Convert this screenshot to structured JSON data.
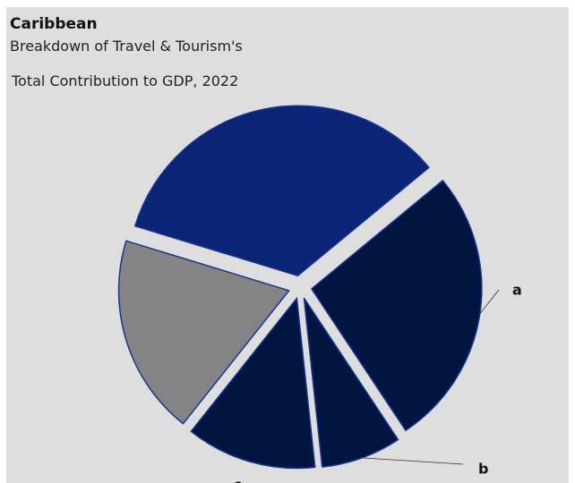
{
  "chart_data": {
    "type": "pie",
    "title": "Caribbean",
    "subtitle_lines": [
      "Breakdown of Travel & Tourism's",
      "Total Contribution to GDP, 2022"
    ],
    "slices": [
      {
        "label": "",
        "value": 36,
        "color": "#0b2576",
        "exploded": true
      },
      {
        "label": "a",
        "value": 28,
        "color": "#021541",
        "exploded": true
      },
      {
        "label": "b",
        "value": 8,
        "color": "#021541",
        "exploded": true
      },
      {
        "label": "c",
        "value": 13,
        "color": "#021541",
        "exploded": true
      },
      {
        "label": "",
        "value": 20,
        "color": "#848484",
        "exploded": true
      }
    ],
    "start_angle_deg": 197,
    "legend": "none"
  }
}
